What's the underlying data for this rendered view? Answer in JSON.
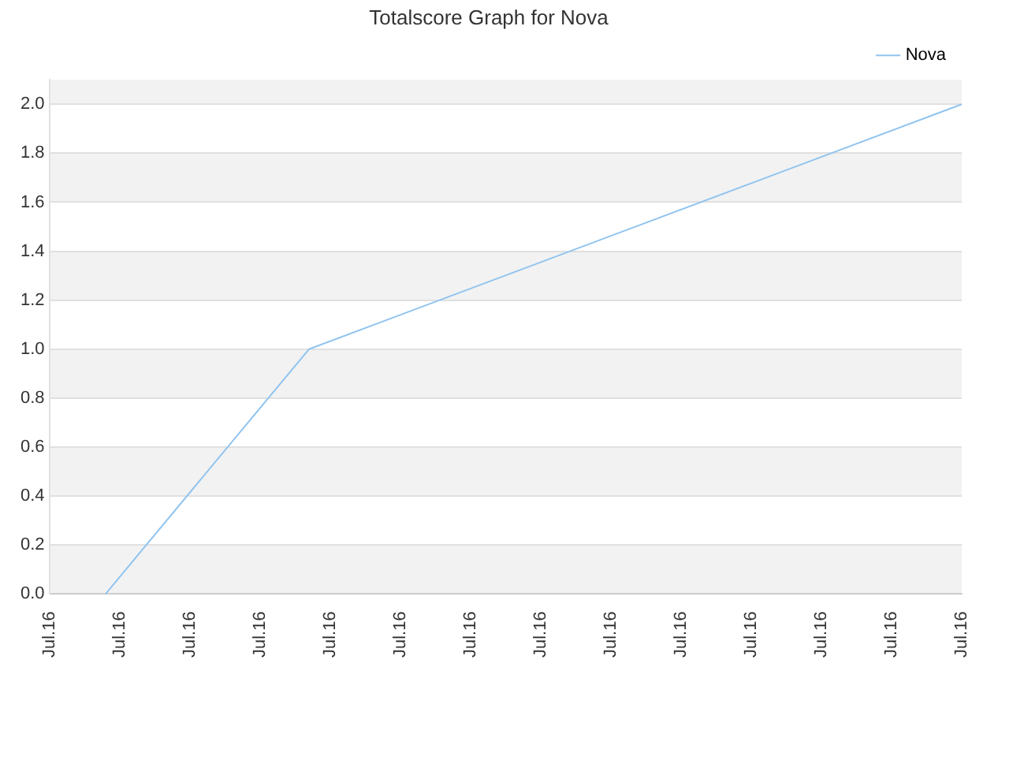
{
  "chart_data": {
    "type": "line",
    "title": "Totalscore Graph for Nova",
    "categories": [
      "Jul.16",
      null,
      null,
      null,
      null,
      null,
      null,
      null,
      null,
      null,
      "Jul.16",
      null,
      null,
      null,
      null,
      null,
      null,
      null,
      null,
      null,
      "Jul.16",
      null,
      null,
      null,
      null,
      null,
      null,
      null,
      null,
      null,
      "Jul.16",
      null,
      null,
      null,
      null,
      null,
      null,
      null,
      null,
      null,
      "Jul.16",
      null,
      null,
      null,
      null,
      null,
      null,
      null,
      null,
      null,
      "Jul.16",
      null,
      null,
      null,
      null,
      null,
      null,
      null,
      null,
      null,
      "Jul.16",
      null,
      null,
      null,
      null,
      null,
      null,
      null,
      null,
      null,
      "Jul.16",
      null,
      null,
      null,
      null,
      null,
      null,
      null,
      null,
      null,
      "Jul.16",
      null,
      null,
      null,
      null,
      null,
      null,
      null,
      null,
      null,
      "Jul.16",
      null,
      null,
      null,
      null,
      null,
      null,
      null,
      null,
      null,
      "Jul.16",
      null,
      null,
      null,
      null,
      null,
      null,
      null,
      null,
      null,
      "Jul.16",
      null,
      null,
      null,
      null,
      null,
      null,
      null,
      null,
      null,
      "Jul.16",
      null,
      null,
      null,
      null,
      null,
      null,
      null,
      null,
      null,
      "Jul.16"
    ],
    "series": [
      {
        "name": "Nova",
        "color": "#90c4f0",
        "values": [
          null,
          null,
          null,
          null,
          null,
          null,
          null,
          null,
          0,
          null,
          null,
          null,
          null,
          null,
          null,
          null,
          null,
          null,
          null,
          null,
          null,
          null,
          null,
          null,
          null,
          null,
          null,
          null,
          null,
          null,
          null,
          null,
          null,
          null,
          null,
          null,
          null,
          1,
          null,
          null,
          null,
          null,
          null,
          null,
          null,
          null,
          null,
          null,
          null,
          null,
          null,
          null,
          null,
          null,
          null,
          null,
          null,
          null,
          null,
          null,
          null,
          null,
          null,
          null,
          null,
          null,
          null,
          null,
          null,
          null,
          null,
          null,
          null,
          null,
          null,
          null,
          null,
          null,
          null,
          null,
          null,
          null,
          null,
          null,
          null,
          null,
          null,
          null,
          null,
          null,
          null,
          null,
          null,
          null,
          null,
          null,
          null,
          null,
          null,
          null,
          null,
          null,
          null,
          null,
          null,
          null,
          null,
          null,
          null,
          null,
          null,
          null,
          null,
          null,
          null,
          null,
          null,
          null,
          null,
          null,
          null,
          null,
          null,
          null,
          null,
          null,
          null,
          null,
          null,
          null,
          2
        ]
      }
    ],
    "ylim": [
      0,
      2.1
    ],
    "yticks": [
      {
        "value": 0,
        "label": "0.0"
      },
      {
        "value": 0.2,
        "label": "0.2"
      },
      {
        "value": 0.4,
        "label": "0.4"
      },
      {
        "value": 0.6,
        "label": "0.6"
      },
      {
        "value": 0.8,
        "label": "0.8"
      },
      {
        "value": 1,
        "label": "1.0"
      },
      {
        "value": 1.2,
        "label": "1.2"
      },
      {
        "value": 1.4,
        "label": "1.4"
      },
      {
        "value": 1.6,
        "label": "1.6"
      },
      {
        "value": 1.8,
        "label": "1.8"
      },
      {
        "value": 2,
        "label": "2.0"
      }
    ],
    "grid": "y",
    "legend": "top right",
    "marker": "none",
    "line_style": "solid"
  }
}
